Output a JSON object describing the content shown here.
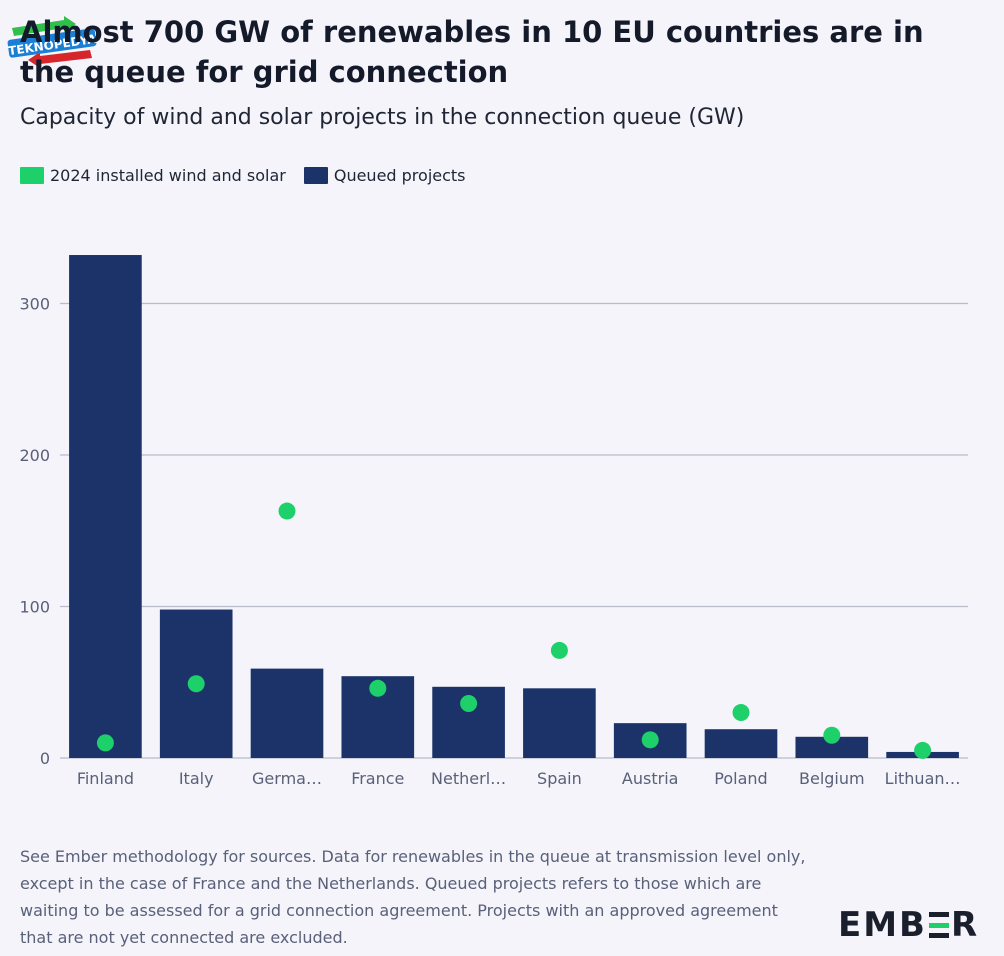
{
  "header": {
    "title": "Almost 700 GW of renewables in 10 EU countries are in the queue for grid connection",
    "subtitle": "Capacity of wind and solar projects in the connection queue (GW)"
  },
  "legend": {
    "items": [
      {
        "label": "2024 installed wind and solar",
        "color": "#1dd069"
      },
      {
        "label": "Queued projects",
        "color": "#1c336a"
      }
    ]
  },
  "chart_data": {
    "type": "bar",
    "categories": [
      "Finland",
      "Italy",
      "Germa…",
      "France",
      "Netherl…",
      "Spain",
      "Austria",
      "Poland",
      "Belgium",
      "Lithuan…"
    ],
    "series": [
      {
        "name": "Queued projects",
        "mark": "bar",
        "color": "#1c336a",
        "values": [
          332,
          98,
          59,
          54,
          47,
          46,
          23,
          19,
          14,
          4
        ]
      },
      {
        "name": "2024 installed wind and solar",
        "mark": "dot",
        "color": "#1dd069",
        "values": [
          10,
          49,
          163,
          46,
          36,
          71,
          12,
          30,
          15,
          5
        ]
      }
    ],
    "yticks": [
      0,
      100,
      200,
      300
    ],
    "ylim": [
      0,
      340
    ],
    "grid": true,
    "legend_position": "top-left"
  },
  "footer": {
    "note": "See Ember methodology for sources. Data for renewables in the queue at transmission level only, except in the case of France and the Netherlands. Queued projects refers to those which are waiting to be assessed for a grid connection agreement. Projects with an approved agreement that are not yet connected are excluded.",
    "logo_left": "EMB",
    "logo_right": "R"
  },
  "watermark": {
    "text": "TEKNOPEDYA"
  }
}
